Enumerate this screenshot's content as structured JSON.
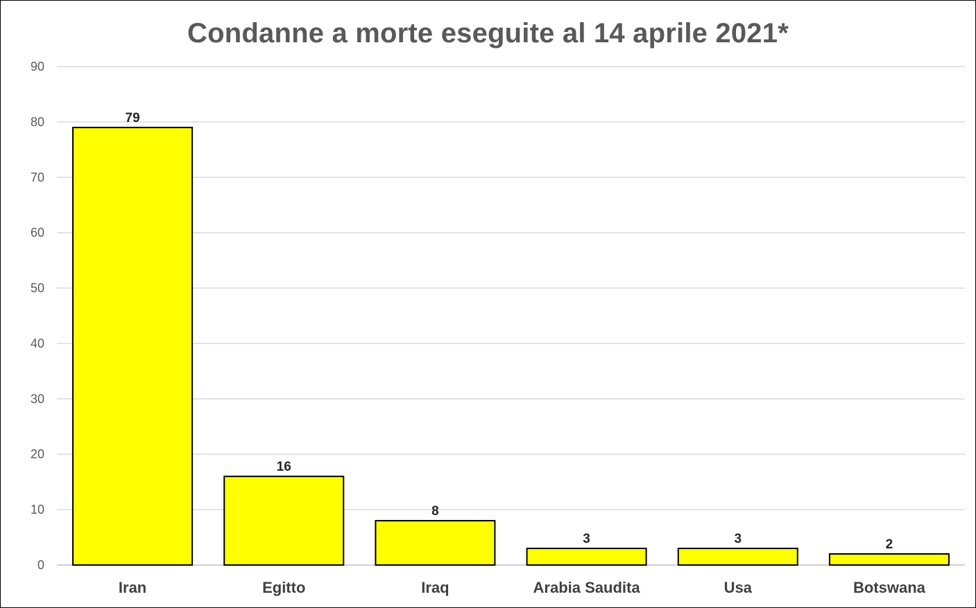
{
  "chart_data": {
    "type": "bar",
    "title": "Condanne a morte eseguite al 14 aprile 2021*",
    "xlabel": "",
    "ylabel": "",
    "categories": [
      "Iran",
      "Egitto",
      "Iraq",
      "Arabia Saudita",
      "Usa",
      "Botswana"
    ],
    "values": [
      79,
      16,
      8,
      3,
      3,
      2
    ],
    "ylim": [
      0,
      90
    ],
    "yticks": [
      0,
      10,
      20,
      30,
      40,
      50,
      60,
      70,
      80,
      90
    ],
    "grid": true,
    "legend": "none",
    "colors": {
      "bar_fill": "#ffff00",
      "bar_stroke": "#000000",
      "grid": "#d9d9d9",
      "title": "#595959"
    }
  }
}
